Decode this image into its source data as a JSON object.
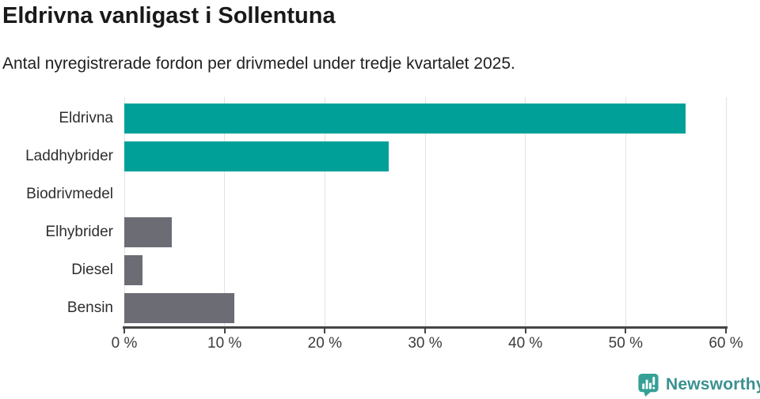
{
  "chart_data": {
    "type": "bar",
    "orientation": "horizontal",
    "title": "Eldrivna vanligast i Sollentuna",
    "subtitle": "Antal nyregistrerade fordon per drivmedel under tredje kvartalet 2025.",
    "categories": [
      "Eldrivna",
      "Laddhybrider",
      "Biodrivmedel",
      "Elhybrider",
      "Diesel",
      "Bensin"
    ],
    "values": [
      56,
      26.4,
      0,
      4.7,
      1.8,
      11
    ],
    "unit": "%",
    "xlim": [
      0,
      60
    ],
    "x_ticks": [
      0,
      10,
      20,
      30,
      40,
      50,
      60
    ],
    "x_tick_labels": [
      "0 %",
      "10 %",
      "20 %",
      "30 %",
      "40 %",
      "50 %",
      "60 %"
    ],
    "grid": "vertical",
    "legend": "none",
    "bar_colors": [
      "#00a099",
      "#00a099",
      "#6c6c75",
      "#6c6c75",
      "#6c6c75",
      "#6c6c75"
    ]
  },
  "colors": {
    "accent_teal": "#00a099",
    "neutral_bar": "#6c6c75",
    "axis": "#454545",
    "grid": "#e2e2e2",
    "logo_icon": "#35a095",
    "logo_text": "#3a9190"
  },
  "footer": {
    "brand": "Newsworthy",
    "brand_icon": "newsworthy-bar-chart-bubble-icon"
  }
}
